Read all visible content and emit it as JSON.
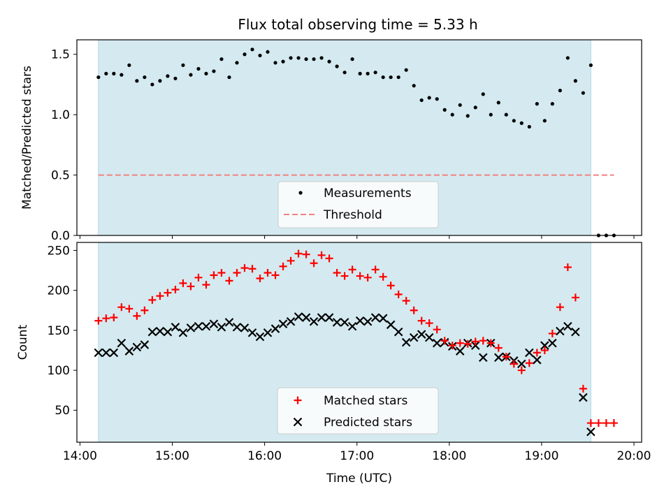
{
  "title": "Flux total observing time = 5.33 h",
  "chart_data": [
    {
      "type": "scatter",
      "panel": "top",
      "xlabel": "",
      "ylabel": "Matched/Predicted stars",
      "xlim": [
        "13:58",
        "20:05"
      ],
      "ylim": [
        0,
        1.62
      ],
      "yticks": [
        "0.0",
        "0.5",
        "1.0",
        "1.5"
      ],
      "observing_window": [
        "14:12",
        "19:32"
      ],
      "grid": false,
      "legend_position": "lower-center",
      "series": [
        {
          "name": "Measurements",
          "marker": "dot",
          "color": "#000000",
          "points": [
            [
              "14:12",
              1.31
            ],
            [
              "14:17",
              1.34
            ],
            [
              "14:22",
              1.34
            ],
            [
              "14:27",
              1.33
            ],
            [
              "14:32",
              1.41
            ],
            [
              "14:37",
              1.28
            ],
            [
              "14:42",
              1.31
            ],
            [
              "14:47",
              1.25
            ],
            [
              "14:52",
              1.28
            ],
            [
              "14:57",
              1.32
            ],
            [
              "15:02",
              1.3
            ],
            [
              "15:07",
              1.41
            ],
            [
              "15:12",
              1.33
            ],
            [
              "15:17",
              1.38
            ],
            [
              "15:22",
              1.34
            ],
            [
              "15:27",
              1.36
            ],
            [
              "15:32",
              1.46
            ],
            [
              "15:37",
              1.31
            ],
            [
              "15:42",
              1.43
            ],
            [
              "15:47",
              1.5
            ],
            [
              "15:52",
              1.54
            ],
            [
              "15:57",
              1.49
            ],
            [
              "16:02",
              1.52
            ],
            [
              "16:07",
              1.43
            ],
            [
              "16:12",
              1.44
            ],
            [
              "16:17",
              1.47
            ],
            [
              "16:22",
              1.47
            ],
            [
              "16:27",
              1.46
            ],
            [
              "16:32",
              1.46
            ],
            [
              "16:37",
              1.47
            ],
            [
              "16:42",
              1.44
            ],
            [
              "16:47",
              1.4
            ],
            [
              "16:52",
              1.35
            ],
            [
              "16:57",
              1.46
            ],
            [
              "17:02",
              1.34
            ],
            [
              "17:07",
              1.34
            ],
            [
              "17:12",
              1.35
            ],
            [
              "17:17",
              1.31
            ],
            [
              "17:22",
              1.31
            ],
            [
              "17:27",
              1.31
            ],
            [
              "17:32",
              1.37
            ],
            [
              "17:37",
              1.24
            ],
            [
              "17:42",
              1.12
            ],
            [
              "17:47",
              1.14
            ],
            [
              "17:52",
              1.13
            ],
            [
              "17:57",
              1.04
            ],
            [
              "18:02",
              1.0
            ],
            [
              "18:07",
              1.08
            ],
            [
              "18:12",
              0.99
            ],
            [
              "18:17",
              1.06
            ],
            [
              "18:22",
              1.17
            ],
            [
              "18:27",
              1.0
            ],
            [
              "18:32",
              1.1
            ],
            [
              "18:37",
              1.0
            ],
            [
              "18:42",
              0.95
            ],
            [
              "18:47",
              0.93
            ],
            [
              "18:52",
              0.9
            ],
            [
              "18:57",
              1.09
            ],
            [
              "19:02",
              0.95
            ],
            [
              "19:07",
              1.09
            ],
            [
              "19:12",
              1.2
            ],
            [
              "19:17",
              1.47
            ],
            [
              "19:22",
              1.28
            ],
            [
              "19:27",
              1.18
            ],
            [
              "19:32",
              1.41
            ],
            [
              "19:37",
              0.0
            ],
            [
              "19:42",
              0.0
            ],
            [
              "19:47",
              0.0
            ]
          ]
        },
        {
          "name": "Threshold",
          "marker": "dashed-line",
          "color": "#f08080",
          "points": [
            [
              "14:12",
              0.5
            ],
            [
              "19:47",
              0.5
            ]
          ]
        }
      ]
    },
    {
      "type": "scatter",
      "panel": "bottom",
      "xlabel": "Time (UTC)",
      "ylabel": "Count",
      "xlim": [
        "13:58",
        "20:05"
      ],
      "ylim": [
        10,
        260
      ],
      "xticks": [
        "14:00",
        "15:00",
        "16:00",
        "17:00",
        "18:00",
        "19:00",
        "20:00"
      ],
      "yticks": [
        "50",
        "100",
        "150",
        "200",
        "250"
      ],
      "observing_window": [
        "14:12",
        "19:32"
      ],
      "grid": false,
      "legend_position": "lower-center",
      "series": [
        {
          "name": "Matched stars",
          "marker": "plus",
          "color": "#ff0000",
          "points": [
            [
              "14:12",
              162
            ],
            [
              "14:17",
              165
            ],
            [
              "14:22",
              166
            ],
            [
              "14:27",
              179
            ],
            [
              "14:32",
              177
            ],
            [
              "14:37",
              168
            ],
            [
              "14:42",
              175
            ],
            [
              "14:47",
              188
            ],
            [
              "14:52",
              193
            ],
            [
              "14:57",
              197
            ],
            [
              "15:02",
              201
            ],
            [
              "15:07",
              209
            ],
            [
              "15:12",
              205
            ],
            [
              "15:17",
              216
            ],
            [
              "15:22",
              207
            ],
            [
              "15:27",
              219
            ],
            [
              "15:32",
              222
            ],
            [
              "15:37",
              212
            ],
            [
              "15:42",
              222
            ],
            [
              "15:47",
              228
            ],
            [
              "15:52",
              227
            ],
            [
              "15:57",
              215
            ],
            [
              "16:02",
              222
            ],
            [
              "16:07",
              219
            ],
            [
              "16:12",
              230
            ],
            [
              "16:17",
              237
            ],
            [
              "16:22",
              246
            ],
            [
              "16:27",
              245
            ],
            [
              "16:32",
              234
            ],
            [
              "16:37",
              244
            ],
            [
              "16:42",
              240
            ],
            [
              "16:47",
              222
            ],
            [
              "16:52",
              218
            ],
            [
              "16:57",
              226
            ],
            [
              "17:02",
              218
            ],
            [
              "17:07",
              216
            ],
            [
              "17:12",
              226
            ],
            [
              "17:17",
              217
            ],
            [
              "17:22",
              206
            ],
            [
              "17:27",
              195
            ],
            [
              "17:32",
              187
            ],
            [
              "17:37",
              175
            ],
            [
              "17:42",
              162
            ],
            [
              "17:47",
              159
            ],
            [
              "17:52",
              151
            ],
            [
              "17:57",
              137
            ],
            [
              "18:02",
              131
            ],
            [
              "18:07",
              134
            ],
            [
              "18:12",
              133
            ],
            [
              "18:17",
              136
            ],
            [
              "18:22",
              137
            ],
            [
              "18:27",
              134
            ],
            [
              "18:32",
              128
            ],
            [
              "18:37",
              117
            ],
            [
              "18:42",
              108
            ],
            [
              "18:47",
              100
            ],
            [
              "18:52",
              109
            ],
            [
              "18:57",
              122
            ],
            [
              "19:02",
              125
            ],
            [
              "19:07",
              146
            ],
            [
              "19:12",
              179
            ],
            [
              "19:17",
              229
            ],
            [
              "19:22",
              191
            ],
            [
              "19:27",
              77
            ],
            [
              "19:32",
              34
            ],
            [
              "19:37",
              34
            ],
            [
              "19:42",
              34
            ],
            [
              "19:47",
              34
            ]
          ]
        },
        {
          "name": "Predicted stars",
          "marker": "x",
          "color": "#000000",
          "points": [
            [
              "14:12",
              122
            ],
            [
              "14:17",
              122
            ],
            [
              "14:22",
              122
            ],
            [
              "14:27",
              134
            ],
            [
              "14:32",
              124
            ],
            [
              "14:37",
              129
            ],
            [
              "14:42",
              132
            ],
            [
              "14:47",
              148
            ],
            [
              "14:52",
              149
            ],
            [
              "14:57",
              148
            ],
            [
              "15:02",
              154
            ],
            [
              "15:07",
              147
            ],
            [
              "15:12",
              153
            ],
            [
              "15:17",
              155
            ],
            [
              "15:22",
              155
            ],
            [
              "15:27",
              158
            ],
            [
              "15:32",
              154
            ],
            [
              "15:37",
              160
            ],
            [
              "15:42",
              154
            ],
            [
              "15:47",
              153
            ],
            [
              "15:52",
              147
            ],
            [
              "15:57",
              142
            ],
            [
              "16:02",
              147
            ],
            [
              "16:07",
              152
            ],
            [
              "16:12",
              158
            ],
            [
              "16:17",
              161
            ],
            [
              "16:22",
              167
            ],
            [
              "16:27",
              166
            ],
            [
              "16:32",
              161
            ],
            [
              "16:37",
              166
            ],
            [
              "16:42",
              166
            ],
            [
              "16:47",
              160
            ],
            [
              "16:52",
              160
            ],
            [
              "16:57",
              155
            ],
            [
              "17:02",
              162
            ],
            [
              "17:07",
              161
            ],
            [
              "17:12",
              166
            ],
            [
              "17:17",
              165
            ],
            [
              "17:22",
              157
            ],
            [
              "17:27",
              148
            ],
            [
              "17:32",
              135
            ],
            [
              "17:37",
              141
            ],
            [
              "17:42",
              145
            ],
            [
              "17:47",
              141
            ],
            [
              "17:52",
              134
            ],
            [
              "17:57",
              135
            ],
            [
              "18:02",
              130
            ],
            [
              "18:07",
              124
            ],
            [
              "18:12",
              134
            ],
            [
              "18:17",
              131
            ],
            [
              "18:22",
              116
            ],
            [
              "18:27",
              134
            ],
            [
              "18:32",
              116
            ],
            [
              "18:37",
              117
            ],
            [
              "18:42",
              112
            ],
            [
              "18:47",
              108
            ],
            [
              "18:52",
              122
            ],
            [
              "18:57",
              113
            ],
            [
              "19:02",
              131
            ],
            [
              "19:07",
              134
            ],
            [
              "19:12",
              149
            ],
            [
              "19:17",
              155
            ],
            [
              "19:22",
              148
            ],
            [
              "19:27",
              66
            ],
            [
              "19:32",
              23
            ]
          ]
        }
      ]
    }
  ],
  "colors": {
    "observing_window_fill": "#d4eaf0",
    "observing_window_edge": "#add8e6",
    "axes": "#000000"
  }
}
